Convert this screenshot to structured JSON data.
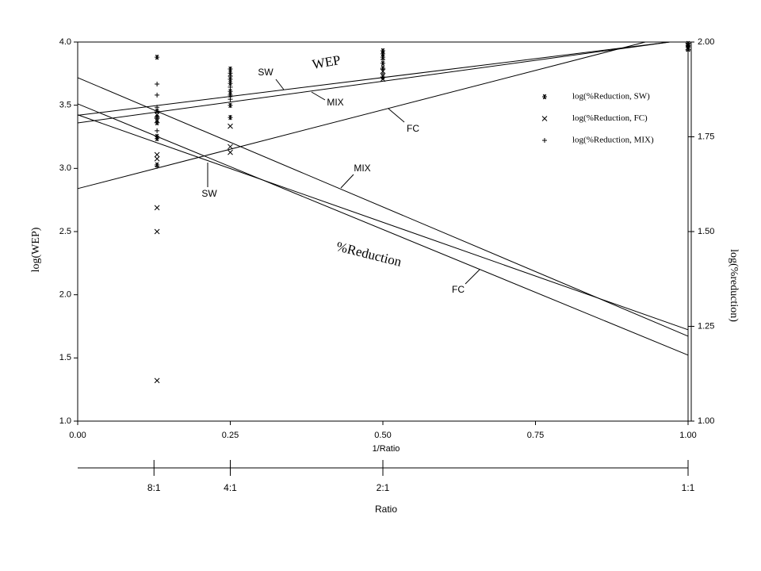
{
  "chart_data": {
    "type": "line",
    "xlabel": "1/Ratio",
    "ylabel": "log(WEP)",
    "y2label": "log(%reduction)",
    "xlim": [
      0,
      1
    ],
    "xticks": [
      {
        "value": 0,
        "label": "0.00"
      },
      {
        "value": 0.25,
        "label": "0.25"
      },
      {
        "value": 0.5,
        "label": "0.50"
      },
      {
        "value": 0.75,
        "label": "0.75"
      },
      {
        "value": 1,
        "label": "1.00"
      }
    ],
    "ylim": [
      1,
      4
    ],
    "yticks": [
      {
        "value": 1,
        "label": "1.0"
      },
      {
        "value": 1.5,
        "label": "1.5"
      },
      {
        "value": 2,
        "label": "2.0"
      },
      {
        "value": 2.5,
        "label": "2.5"
      },
      {
        "value": 3,
        "label": "3.0"
      },
      {
        "value": 3.5,
        "label": "3.5"
      },
      {
        "value": 4,
        "label": "4.0"
      }
    ],
    "y2lim": [
      1,
      2
    ],
    "y2ticks": [
      {
        "value": 1,
        "label": "1.00"
      },
      {
        "value": 1.25,
        "label": "1.25"
      },
      {
        "value": 1.5,
        "label": "1.50"
      },
      {
        "value": 1.75,
        "label": "1.75"
      },
      {
        "value": 2,
        "label": "2.00"
      }
    ],
    "annotations": [
      "WEP",
      "%Reduction"
    ],
    "ratio_axis": {
      "label": "Ratio",
      "ticks": [
        {
          "value": 0.125,
          "label": "8:1"
        },
        {
          "value": 0.25,
          "label": "4:1"
        },
        {
          "value": 0.5,
          "label": "2:1"
        },
        {
          "value": 1,
          "label": "1:1"
        }
      ]
    },
    "legend": "upper right",
    "series": [
      {
        "name": "SW",
        "type": "line",
        "color": "#000000",
        "x": [
          0,
          0.97
        ],
        "values": [
          3.42,
          4.0
        ]
      },
      {
        "name": "MIX",
        "type": "line",
        "color": "#000000",
        "x": [
          0,
          0.97
        ],
        "values": [
          3.36,
          4.0
        ]
      },
      {
        "name": "FC",
        "type": "line",
        "color": "#000000",
        "x": [
          0,
          0.93
        ],
        "values": [
          2.84,
          4.0
        ]
      },
      {
        "name": "MIX",
        "type": "line",
        "color": "#000000",
        "axis": "y2",
        "x": [
          0,
          1
        ],
        "values": [
          1.906,
          1.224
        ]
      },
      {
        "name": "SW",
        "type": "line",
        "color": "#000000",
        "axis": "y2",
        "x": [
          0,
          1
        ],
        "values": [
          1.808,
          1.241
        ]
      },
      {
        "name": "FC",
        "type": "line",
        "color": "#000000",
        "axis": "y2",
        "x": [
          0,
          1
        ],
        "values": [
          1.837,
          1.174
        ]
      },
      {
        "name": "log(%Reduction, SW)",
        "type": "scatter",
        "marker": "*",
        "color": "#000000",
        "axis": "y2",
        "x": [
          0.13,
          0.13,
          0.13,
          0.13,
          0.13,
          0.13,
          0.13,
          0.25,
          0.25,
          0.25,
          0.25,
          0.25,
          0.25,
          0.25,
          0.25,
          0.5,
          0.5,
          0.5,
          0.5,
          0.5,
          0.5,
          1,
          1,
          1
        ],
        "values": [
          1.96,
          1.818,
          1.801,
          1.787,
          1.751,
          1.745,
          1.676,
          1.929,
          1.918,
          1.902,
          1.891,
          1.87,
          1.86,
          1.833,
          1.801,
          1.977,
          1.969,
          1.96,
          1.944,
          1.931,
          1.908,
          1.996,
          1.99,
          1.981
        ]
      },
      {
        "name": "log(%Reduction, FC)",
        "type": "scatter",
        "marker": "x",
        "color": "#000000",
        "axis": "y2",
        "x": [
          0.13,
          0.13,
          0.13,
          0.13,
          0.13,
          0.13,
          0.13,
          0.25,
          0.25,
          0.25,
          0.5,
          0.5,
          1,
          1
        ],
        "values": [
          1.808,
          1.793,
          1.703,
          1.692,
          1.563,
          1.5,
          1.107,
          1.778,
          1.724,
          1.709,
          1.923,
          1.902,
          1.992,
          1.985
        ]
      },
      {
        "name": "log(%Reduction, MIX)",
        "type": "scatter",
        "marker": "+",
        "color": "#000000",
        "axis": "y2",
        "x": [
          0.13,
          0.13,
          0.13,
          0.13,
          0.13,
          0.25,
          0.25,
          0.25,
          0.5,
          0.5,
          1,
          1
        ],
        "values": [
          1.889,
          1.86,
          1.828,
          1.766,
          1.672,
          1.91,
          1.881,
          1.849,
          1.954,
          1.916,
          1.994,
          1.977
        ]
      }
    ]
  }
}
